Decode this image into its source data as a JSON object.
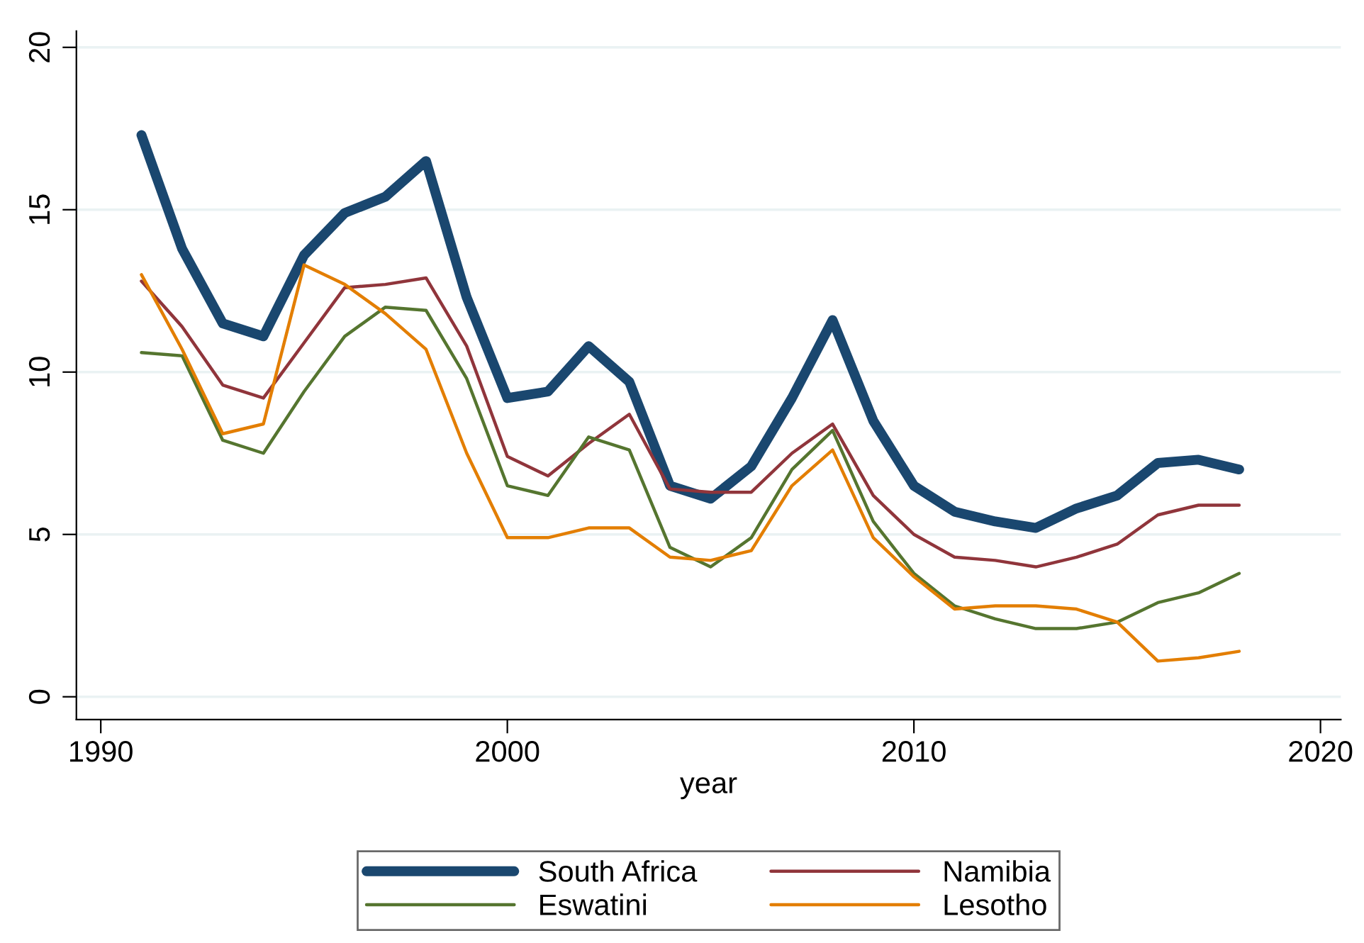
{
  "chart_data": {
    "type": "line",
    "xlabel": "year",
    "x": [
      1991,
      1992,
      1993,
      1994,
      1995,
      1996,
      1997,
      1998,
      1999,
      2000,
      2001,
      2002,
      2003,
      2004,
      2005,
      2006,
      2007,
      2008,
      2009,
      2010,
      2011,
      2012,
      2013,
      2014,
      2015,
      2016,
      2017,
      2018
    ],
    "series": [
      {
        "name": "South Africa",
        "color": "#1a476f",
        "values": [
          17.3,
          13.8,
          11.5,
          11.1,
          13.6,
          14.9,
          15.4,
          16.5,
          12.3,
          9.2,
          9.4,
          10.8,
          9.7,
          6.5,
          6.1,
          7.1,
          9.2,
          11.6,
          8.5,
          6.5,
          5.7,
          5.4,
          5.2,
          5.8,
          6.2,
          7.2,
          7.3,
          7.0
        ]
      },
      {
        "name": "Namibia",
        "color": "#90353b",
        "values": [
          12.8,
          11.4,
          9.6,
          9.2,
          10.9,
          12.6,
          12.7,
          12.9,
          10.8,
          7.4,
          6.8,
          7.8,
          8.7,
          6.4,
          6.3,
          6.3,
          7.5,
          8.4,
          6.2,
          5.0,
          4.3,
          4.2,
          4.0,
          4.3,
          4.7,
          5.6,
          5.9,
          5.9
        ]
      },
      {
        "name": "Eswatini",
        "color": "#55752f",
        "values": [
          10.6,
          10.5,
          7.9,
          7.5,
          9.4,
          11.1,
          12.0,
          11.9,
          9.8,
          6.5,
          6.2,
          8.0,
          7.6,
          4.6,
          4.0,
          4.9,
          7.0,
          8.2,
          5.4,
          3.8,
          2.8,
          2.4,
          2.1,
          2.1,
          2.3,
          2.9,
          3.2,
          3.8
        ]
      },
      {
        "name": "Lesotho",
        "color": "#e37e00",
        "values": [
          13.0,
          10.7,
          8.1,
          8.4,
          13.3,
          12.7,
          11.8,
          10.7,
          7.5,
          4.9,
          4.9,
          5.2,
          5.2,
          4.3,
          4.2,
          4.5,
          6.5,
          7.6,
          4.9,
          3.7,
          2.7,
          2.8,
          2.8,
          2.7,
          2.3,
          1.1,
          1.2,
          1.4
        ]
      }
    ],
    "xlim": [
      1989.4,
      2020.5
    ],
    "ylim": [
      -0.7,
      20.5
    ],
    "xticks": [
      1990,
      2000,
      2010,
      2020
    ],
    "yticks": [
      0,
      5,
      10,
      15,
      20
    ],
    "grid": "y",
    "legend": "bottom",
    "marker": "none",
    "line_style": "solid"
  }
}
